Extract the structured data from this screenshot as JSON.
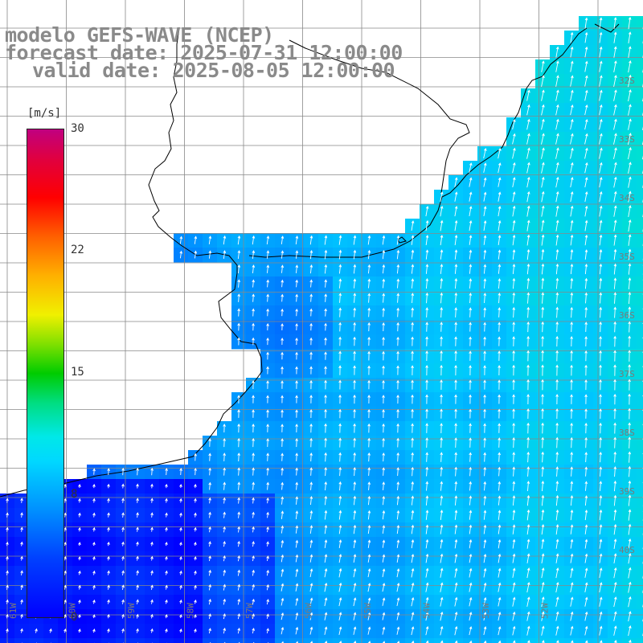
{
  "title": {
    "line1": "modelo GEFS-WAVE (NCEP)",
    "line2": "forecast date: 2025-07-31 12:00:00",
    "line3": "valid date: 2025-08-05 12:00:00"
  },
  "colorbar": {
    "unit": "[m/s]",
    "ticks": [
      "30",
      "22",
      "15",
      "8",
      "0"
    ],
    "range": [
      0,
      30
    ]
  },
  "map": {
    "projection": "lat-lon",
    "lon_range": [
      -61,
      -50
    ],
    "lat_range": [
      -42,
      -31.5
    ],
    "lon_labels": [
      "61W",
      "60W",
      "59W",
      "58W",
      "57W",
      "56W",
      "55W",
      "54W",
      "53W",
      "52W"
    ],
    "lat_labels": [
      "32S",
      "33S",
      "34S",
      "35S",
      "36S",
      "37S",
      "38S",
      "39S",
      "40S"
    ],
    "colors": {
      "low": "#0000ff",
      "mid": "#00a0ff",
      "high": "#00e8c0",
      "land": "#ffffff",
      "grid": "#888888",
      "coast": "#000000",
      "arrow": "#ffffff"
    }
  }
}
